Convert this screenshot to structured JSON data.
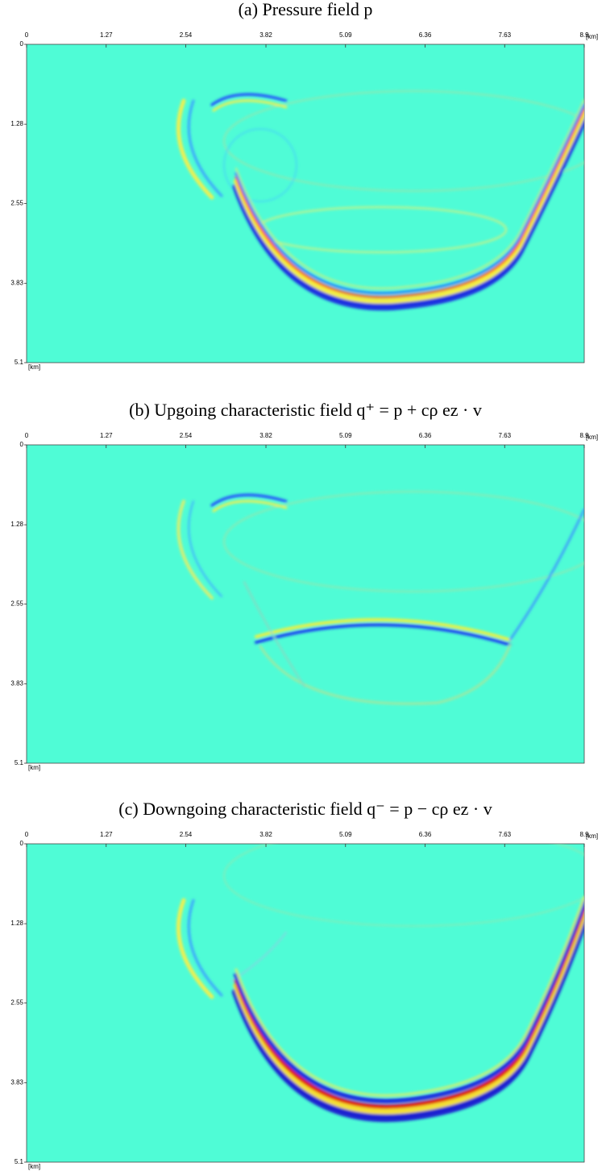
{
  "chart_data": [
    {
      "type": "image",
      "title": "(a) Pressure field p",
      "xlim": [
        0,
        8.9
      ],
      "xticks": [
        0,
        1.27,
        2.54,
        3.82,
        5.09,
        6.36,
        7.63,
        8.9
      ],
      "ylim": [
        0,
        5.1
      ],
      "yticks": [
        0,
        1.28,
        2.55,
        3.83,
        5.1
      ],
      "x_unit": "[km]",
      "y_unit": "[km]"
    },
    {
      "type": "image",
      "title": "(b) Upgoing characteristic field q⁺ = p + cρ ez · v",
      "xlim": [
        0,
        8.9
      ],
      "xticks": [
        0,
        1.27,
        2.54,
        3.82,
        5.09,
        6.36,
        7.63,
        8.9
      ],
      "ylim": [
        0,
        5.1
      ],
      "yticks": [
        0,
        1.28,
        2.55,
        3.83,
        5.1
      ],
      "x_unit": "[km]",
      "y_unit": "[km]"
    },
    {
      "type": "image",
      "title": "(c) Downgoing characteristic field q⁻ = p − cρ ez · v",
      "xlim": [
        0,
        8.9
      ],
      "xticks": [
        0,
        1.27,
        2.54,
        3.82,
        5.09,
        6.36,
        7.63,
        8.9
      ],
      "ylim": [
        0,
        5.1
      ],
      "yticks": [
        0,
        1.28,
        2.55,
        3.83,
        5.1
      ],
      "x_unit": "[km]",
      "y_unit": "[km]"
    }
  ]
}
